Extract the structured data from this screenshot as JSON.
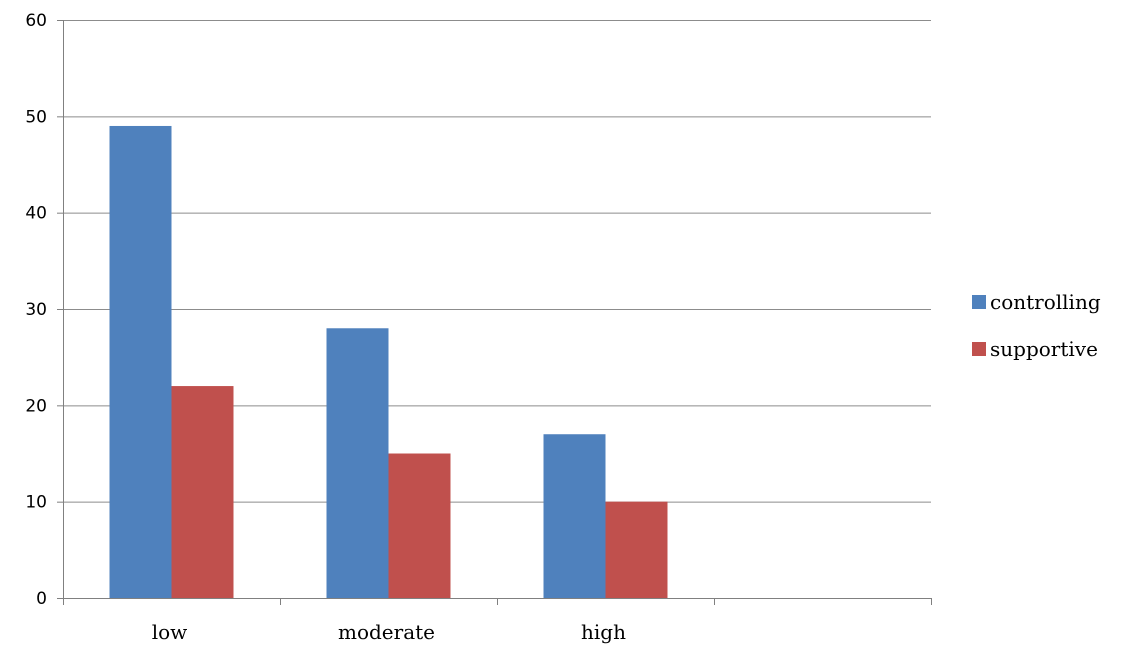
{
  "chart_data": {
    "type": "bar",
    "title": "",
    "xlabel": "",
    "ylabel": "",
    "categories": [
      "low",
      "moderate",
      "high",
      ""
    ],
    "series": [
      {
        "name": "controlling",
        "color": "#4F81BD",
        "values": [
          49,
          28,
          17,
          null
        ]
      },
      {
        "name": "supportive",
        "color": "#C0504D",
        "values": [
          22,
          15,
          10,
          null
        ]
      }
    ],
    "ylim": [
      0,
      60
    ],
    "yticks": [
      "0",
      "10",
      "20",
      "30",
      "40",
      "50",
      "60"
    ],
    "grid": true,
    "legend_position": "right"
  }
}
